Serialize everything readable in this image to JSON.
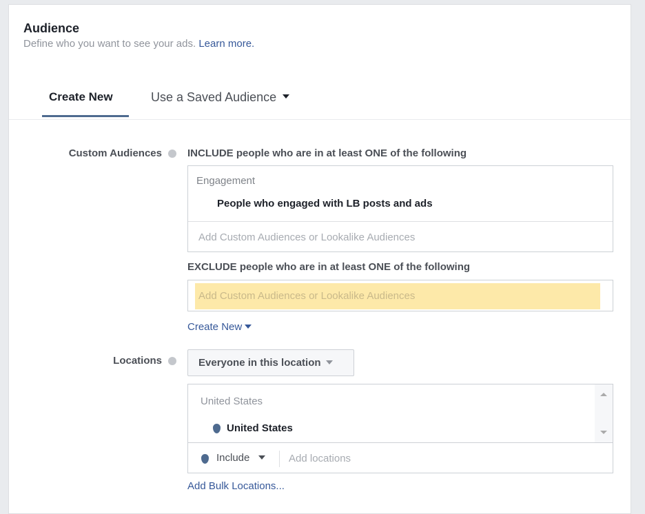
{
  "header": {
    "title": "Audience",
    "subtitle": "Define who you want to see your ads.",
    "learn_more": "Learn more."
  },
  "tabs": [
    {
      "label": "Create New",
      "active": true
    },
    {
      "label": "Use a Saved Audience"
    }
  ],
  "custom_audiences": {
    "label": "Custom Audiences",
    "include_heading": "INCLUDE people who are in at least ONE of the following",
    "include_group": "Engagement",
    "include_item": "People who engaged with LB posts and ads",
    "include_placeholder": "Add Custom Audiences or Lookalike Audiences",
    "exclude_heading": "EXCLUDE people who are in at least ONE of the following",
    "exclude_placeholder": "Add Custom Audiences or Lookalike Audiences",
    "create_new": "Create New"
  },
  "locations": {
    "label": "Locations",
    "type_dropdown": "Everyone in this location",
    "group": "United States",
    "item": "United States",
    "include_dropdown": "Include",
    "add_placeholder": "Add locations",
    "bulk_link": "Add Bulk Locations..."
  },
  "colors": {
    "link": "#365899",
    "highlight": "#fde9a9",
    "accent": "#4e6a8f"
  }
}
